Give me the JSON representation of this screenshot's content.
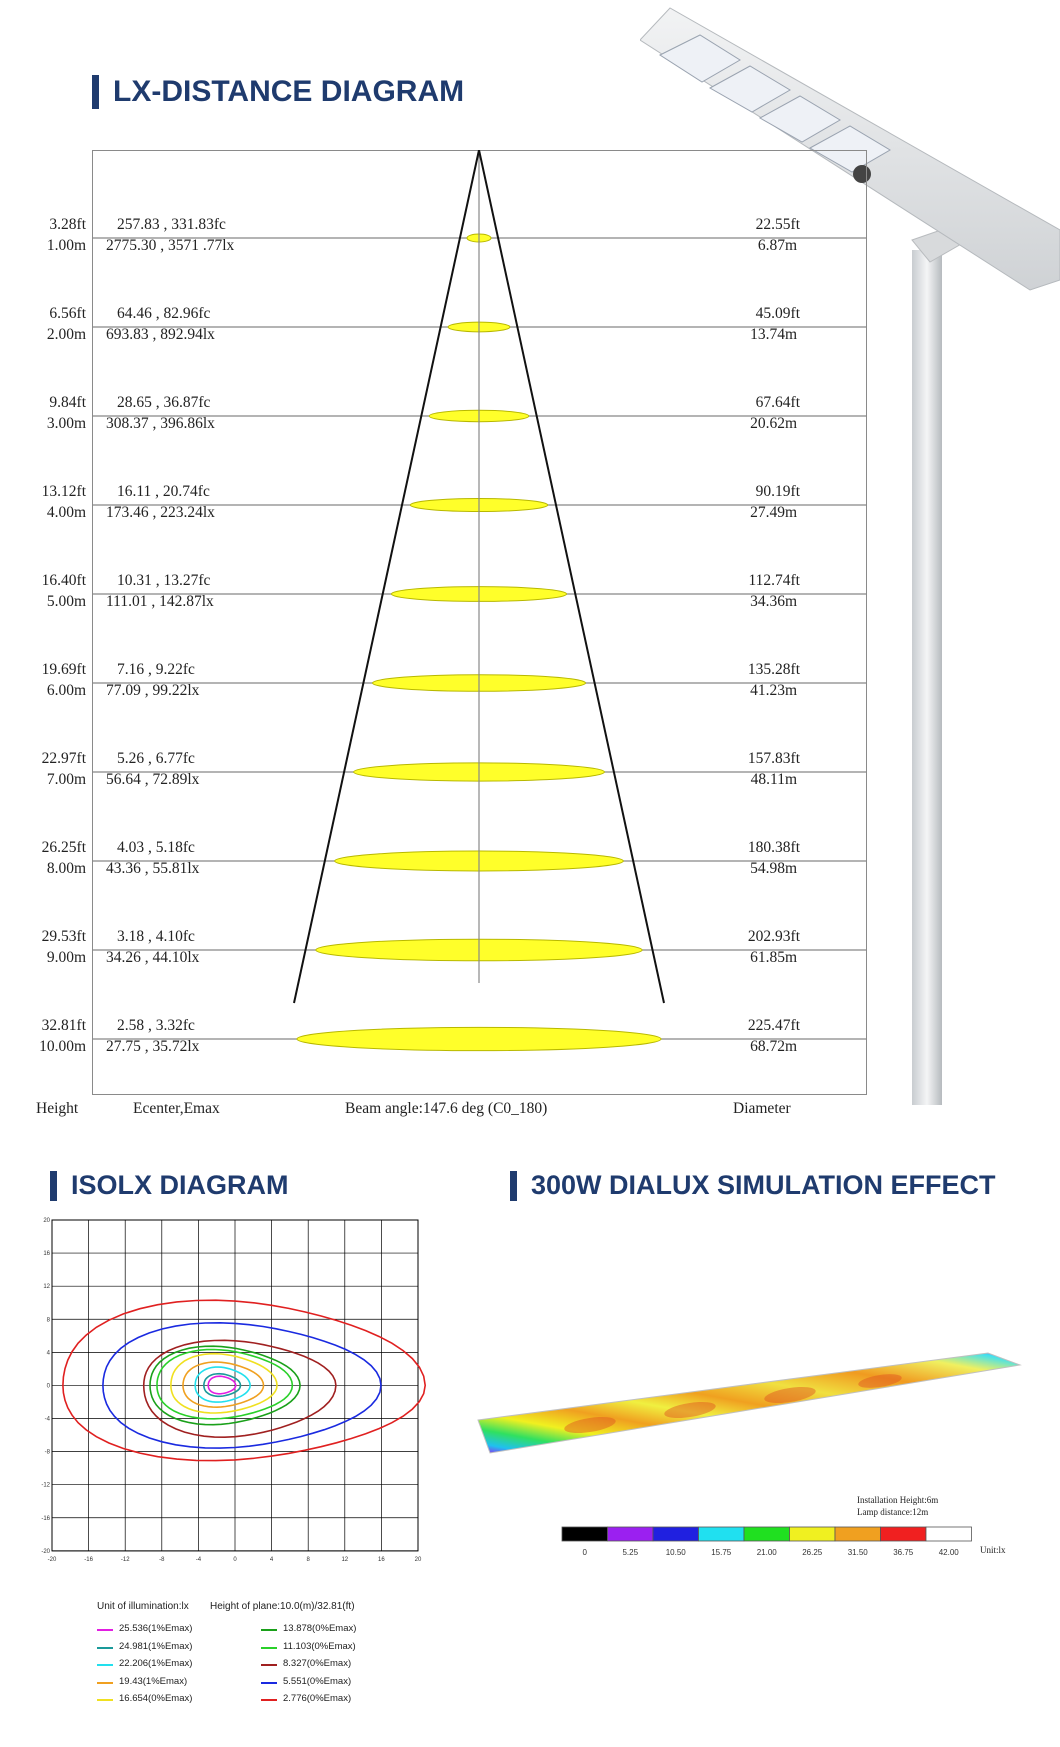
{
  "lx_diagram": {
    "title": "LX-DISTANCE DIAGRAM",
    "footer": {
      "height": "Height",
      "ecenter": "Ecenter,Emax",
      "beam": "Beam angle:147.6 deg (C0_180)",
      "diameter": "Diameter"
    },
    "rows": [
      {
        "h_ft": "3.28ft",
        "h_m": "1.00m",
        "fc": "257.83 , 331.83fc",
        "lx": "2775.30 , 3571 .77lx",
        "d_ft": "22.55ft",
        "d_m": "6.87m"
      },
      {
        "h_ft": "6.56ft",
        "h_m": "2.00m",
        "fc": "64.46 , 82.96fc",
        "lx": "693.83 , 892.94lx",
        "d_ft": "45.09ft",
        "d_m": "13.74m"
      },
      {
        "h_ft": "9.84ft",
        "h_m": "3.00m",
        "fc": "28.65 , 36.87fc",
        "lx": "308.37 , 396.86lx",
        "d_ft": "67.64ft",
        "d_m": "20.62m"
      },
      {
        "h_ft": "13.12ft",
        "h_m": "4.00m",
        "fc": "16.11 , 20.74fc",
        "lx": "173.46 , 223.24lx",
        "d_ft": "90.19ft",
        "d_m": "27.49m"
      },
      {
        "h_ft": "16.40ft",
        "h_m": "5.00m",
        "fc": "10.31 , 13.27fc",
        "lx": "111.01 , 142.87lx",
        "d_ft": "112.74ft",
        "d_m": "34.36m"
      },
      {
        "h_ft": "19.69ft",
        "h_m": "6.00m",
        "fc": "7.16 , 9.22fc",
        "lx": "77.09 , 99.22lx",
        "d_ft": "135.28ft",
        "d_m": "41.23m"
      },
      {
        "h_ft": "22.97ft",
        "h_m": "7.00m",
        "fc": "5.26 , 6.77fc",
        "lx": "56.64 , 72.89lx",
        "d_ft": "157.83ft",
        "d_m": "48.11m"
      },
      {
        "h_ft": "26.25ft",
        "h_m": "8.00m",
        "fc": "4.03 , 5.18fc",
        "lx": "43.36 , 55.81lx",
        "d_ft": "180.38ft",
        "d_m": "54.98m"
      },
      {
        "h_ft": "29.53ft",
        "h_m": "9.00m",
        "fc": "3.18 , 4.10fc",
        "lx": "34.26 , 44.10lx",
        "d_ft": "202.93ft",
        "d_m": "61.85m"
      },
      {
        "h_ft": "32.81ft",
        "h_m": "10.00m",
        "fc": "2.58 , 3.32fc",
        "lx": "27.75 , 35.72lx",
        "d_ft": "225.47ft",
        "d_m": "68.72m"
      }
    ],
    "colors": {
      "ellipse": "#ffff2a",
      "ellipse_stroke": "#b8b800",
      "cone": "#111111",
      "grid": "#888888"
    }
  },
  "isolx": {
    "title": "ISOLX DIAGRAM",
    "tick_labels": [
      "-20",
      "-16",
      "-12",
      "-8",
      "-4",
      "0",
      "4",
      "8",
      "12",
      "16",
      "20"
    ],
    "unit_label": "Unit of illumination:lx",
    "plane_label": "Height of plane:10.0(m)/32.81(ft)",
    "legend": [
      {
        "label": "25.536(1%Emax)",
        "color": "#e21ee2"
      },
      {
        "label": "13.878(0%Emax)",
        "color": "#1aa01a"
      },
      {
        "label": "24.981(1%Emax)",
        "color": "#1a9a9a"
      },
      {
        "label": "11.103(0%Emax)",
        "color": "#2ad02a"
      },
      {
        "label": "22.206(1%Emax)",
        "color": "#22e0ee"
      },
      {
        "label": "8.327(0%Emax)",
        "color": "#a02020"
      },
      {
        "label": "19.43(1%Emax)",
        "color": "#f0a020"
      },
      {
        "label": "5.551(0%Emax)",
        "color": "#1a2ae0"
      },
      {
        "label": "16.654(0%Emax)",
        "color": "#f0e020"
      },
      {
        "label": "2.776(0%Emax)",
        "color": "#e02020"
      }
    ]
  },
  "dialux": {
    "title": "300W DIALUX SIMULATION EFFECT",
    "install_height": "Installation Height:6m",
    "lamp_distance": "Lamp distance:12m",
    "scale_values": [
      "0",
      "5.25",
      "10.50",
      "15.75",
      "21.00",
      "26.25",
      "31.50",
      "36.75",
      "42.00"
    ],
    "unit": "Unit:lx",
    "scale_colors": [
      "#000000",
      "#9b20f0",
      "#2020e0",
      "#20e0f0",
      "#20e020",
      "#f0f020",
      "#f0a020",
      "#f02020",
      "#ffffff"
    ]
  }
}
